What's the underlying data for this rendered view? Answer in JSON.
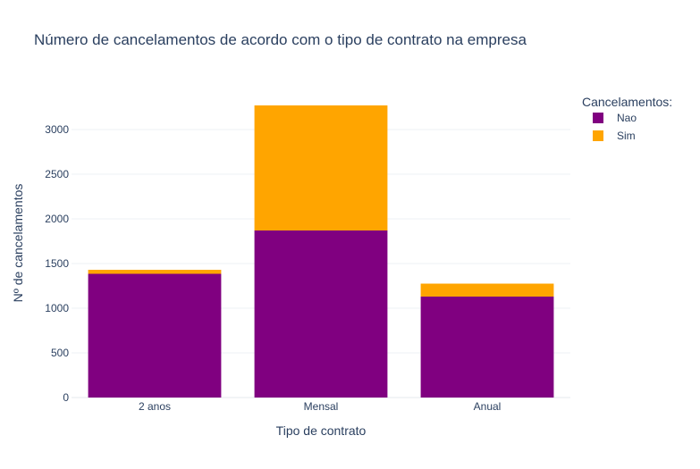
{
  "chart_data": {
    "type": "bar",
    "barmode": "stack",
    "title": "Número de cancelamentos de acordo com o tipo de contrato na empresa",
    "xlabel": "Tipo de contrato",
    "ylabel": "Nº de cancelamentos",
    "categories": [
      "2 anos",
      "Mensal",
      "Anual"
    ],
    "ylim": [
      0,
      3450
    ],
    "yticks": [
      0,
      500,
      1000,
      1500,
      2000,
      2500,
      3000
    ],
    "grid": true,
    "legend": {
      "title": "Cancelamentos:",
      "placement": "top-right"
    },
    "series": [
      {
        "name": "Nao",
        "color": "#800080",
        "values": [
          1385,
          1870,
          1130
        ]
      },
      {
        "name": "Sim",
        "color": "#FFA500",
        "values": [
          45,
          1400,
          145
        ]
      }
    ]
  }
}
